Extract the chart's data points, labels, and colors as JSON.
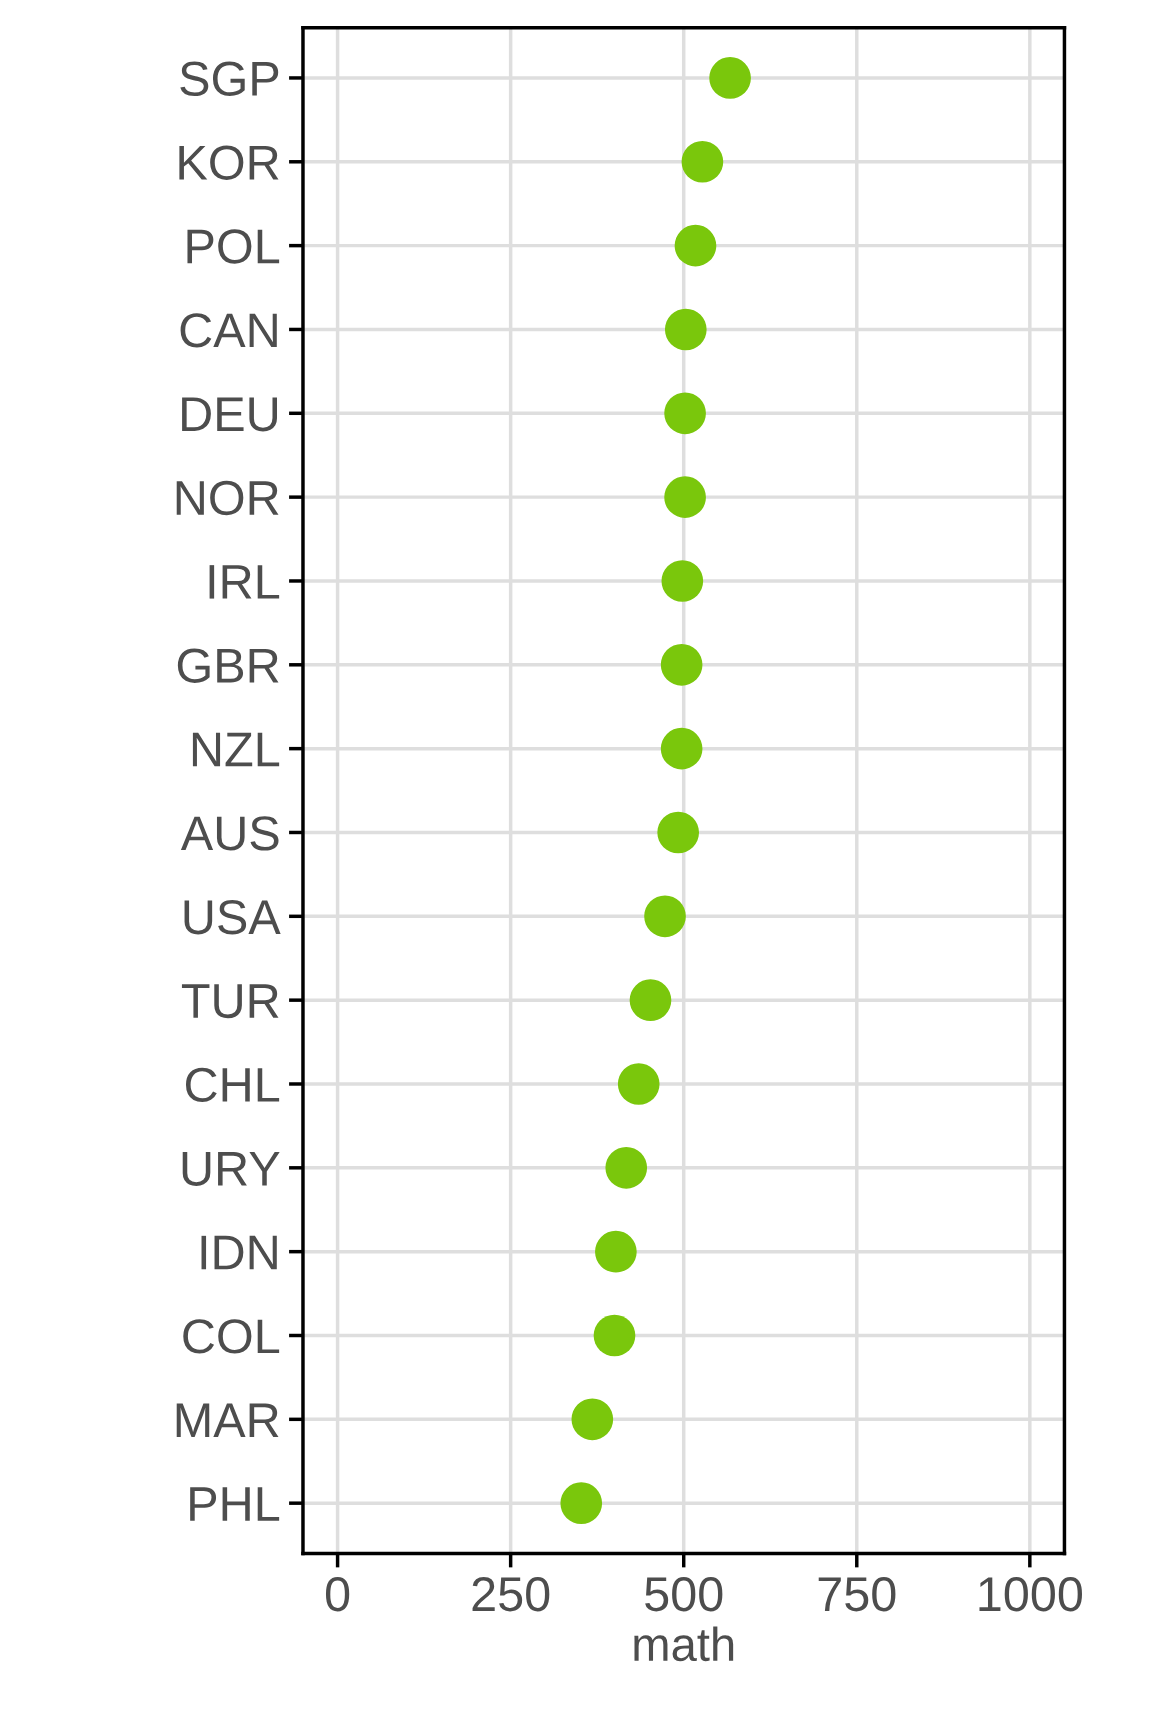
{
  "chart_data": {
    "type": "scatter",
    "orientation": "horizontal",
    "xlabel": "math",
    "categories": [
      "SGP",
      "KOR",
      "POL",
      "CAN",
      "DEU",
      "NOR",
      "IRL",
      "GBR",
      "NZL",
      "AUS",
      "USA",
      "TUR",
      "CHL",
      "URY",
      "IDN",
      "COL",
      "MAR",
      "PHL"
    ],
    "values": [
      567,
      527,
      517,
      503,
      502,
      502,
      498,
      497,
      497,
      492,
      473,
      452,
      435,
      417,
      402,
      400,
      368,
      352
    ],
    "color": "#7ac70c",
    "xlim": [
      -50,
      1050
    ],
    "xticks": [
      0,
      250,
      500,
      750,
      1000
    ],
    "grid": true,
    "marker": "circle"
  }
}
